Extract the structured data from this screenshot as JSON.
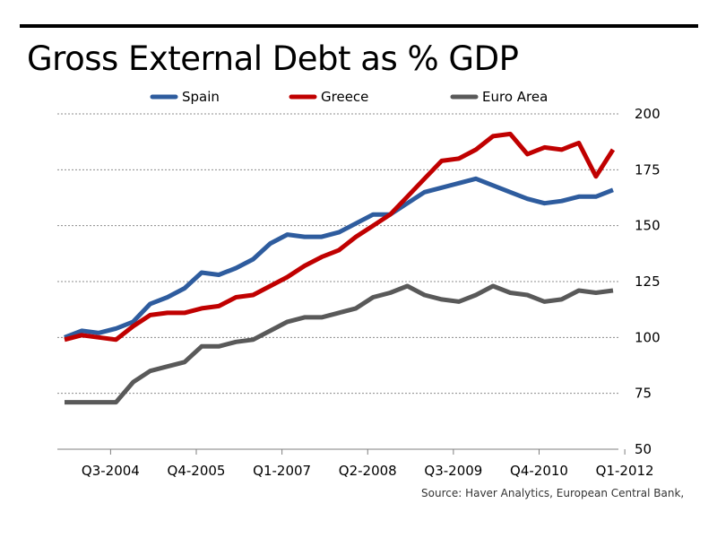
{
  "chart_data": {
    "type": "line",
    "title": "Gross External Debt as % GDP",
    "xlabel": "",
    "ylabel": "",
    "ylim": [
      50,
      200
    ],
    "yticks": [
      50,
      75,
      100,
      125,
      150,
      175,
      200
    ],
    "y_axis_side": "right",
    "grid": "horizontal dashed",
    "legend_position": "top",
    "x_tick_labels": [
      "Q3-2004",
      "Q4-2005",
      "Q1-2007",
      "Q2-2008",
      "Q3-2009",
      "Q4-2010",
      "Q1-2012"
    ],
    "x_tick_indices": [
      3,
      8,
      13,
      18,
      23,
      28,
      33
    ],
    "series": [
      {
        "name": "Spain",
        "color": "#2e5c9e",
        "values": [
          100,
          103,
          102,
          104,
          107,
          115,
          118,
          122,
          129,
          128,
          131,
          135,
          142,
          146,
          145,
          145,
          147,
          151,
          155,
          155,
          160,
          165,
          167,
          169,
          171,
          168,
          165,
          162,
          160,
          161,
          163,
          163,
          166
        ]
      },
      {
        "name": "Greece",
        "color": "#c00000",
        "values": [
          99,
          101,
          100,
          99,
          105,
          110,
          111,
          111,
          113,
          114,
          118,
          119,
          123,
          127,
          132,
          136,
          139,
          145,
          150,
          155,
          163,
          171,
          179,
          180,
          184,
          190,
          191,
          182,
          185,
          184,
          187,
          172,
          184
        ]
      },
      {
        "name": "Euro Area",
        "color": "#595959",
        "values": [
          71,
          71,
          71,
          71,
          80,
          85,
          87,
          89,
          96,
          96,
          98,
          99,
          103,
          107,
          109,
          109,
          111,
          113,
          118,
          120,
          123,
          119,
          117,
          116,
          119,
          123,
          120,
          119,
          116,
          117,
          121,
          120,
          121
        ]
      }
    ]
  },
  "source": "Source: Haver Analytics,  European Central Bank,"
}
